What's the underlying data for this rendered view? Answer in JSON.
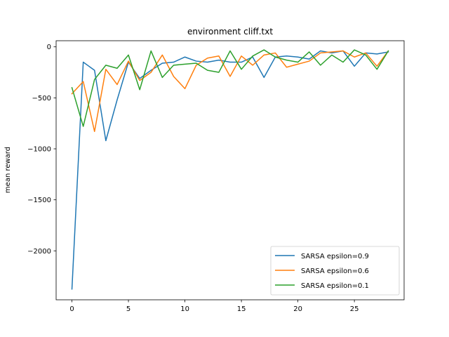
{
  "chart_data": {
    "type": "line",
    "title": "environment cliff.txt",
    "xlabel": "",
    "ylabel": "mean reward",
    "xlim": [
      -1.4,
      29.4
    ],
    "ylim": [
      -2480,
      60
    ],
    "xticks": [
      0,
      5,
      10,
      15,
      20,
      25
    ],
    "yticks": [
      0,
      -500,
      -1000,
      -1500,
      -2000
    ],
    "ytick_labels": [
      "0",
      "−500",
      "−1000",
      "−1500",
      "−2000"
    ],
    "grid": false,
    "legend_position": "lower-right",
    "x": [
      0,
      1,
      2,
      3,
      4,
      5,
      6,
      7,
      8,
      9,
      10,
      11,
      12,
      13,
      14,
      15,
      16,
      17,
      18,
      19,
      20,
      21,
      22,
      23,
      24,
      25,
      26,
      27,
      28
    ],
    "series": [
      {
        "name": "SARSA epsilon=0.9",
        "color": "#1f77b4",
        "values": [
          -2375,
          -150,
          -230,
          -920,
          -520,
          -150,
          -310,
          -230,
          -160,
          -150,
          -100,
          -140,
          -150,
          -130,
          -150,
          -150,
          -100,
          -300,
          -100,
          -90,
          -100,
          -120,
          -40,
          -60,
          -40,
          -190,
          -60,
          -70,
          -50
        ]
      },
      {
        "name": "SARSA epsilon=0.6",
        "color": "#ff7f0e",
        "values": [
          -460,
          -340,
          -830,
          -220,
          -370,
          -140,
          -330,
          -250,
          -80,
          -290,
          -410,
          -180,
          -110,
          -90,
          -290,
          -90,
          -180,
          -80,
          -60,
          -200,
          -170,
          -140,
          -60,
          -50,
          -40,
          -100,
          -60,
          -190,
          -40
        ]
      },
      {
        "name": "SARSA epsilon=0.1",
        "color": "#2ca02c",
        "values": [
          -400,
          -780,
          -320,
          -180,
          -210,
          -80,
          -420,
          -40,
          -300,
          -180,
          -170,
          -160,
          -230,
          -250,
          -40,
          -220,
          -90,
          -30,
          -100,
          -130,
          -150,
          -50,
          -180,
          -80,
          -150,
          -30,
          -80,
          -220,
          -40
        ]
      }
    ]
  }
}
